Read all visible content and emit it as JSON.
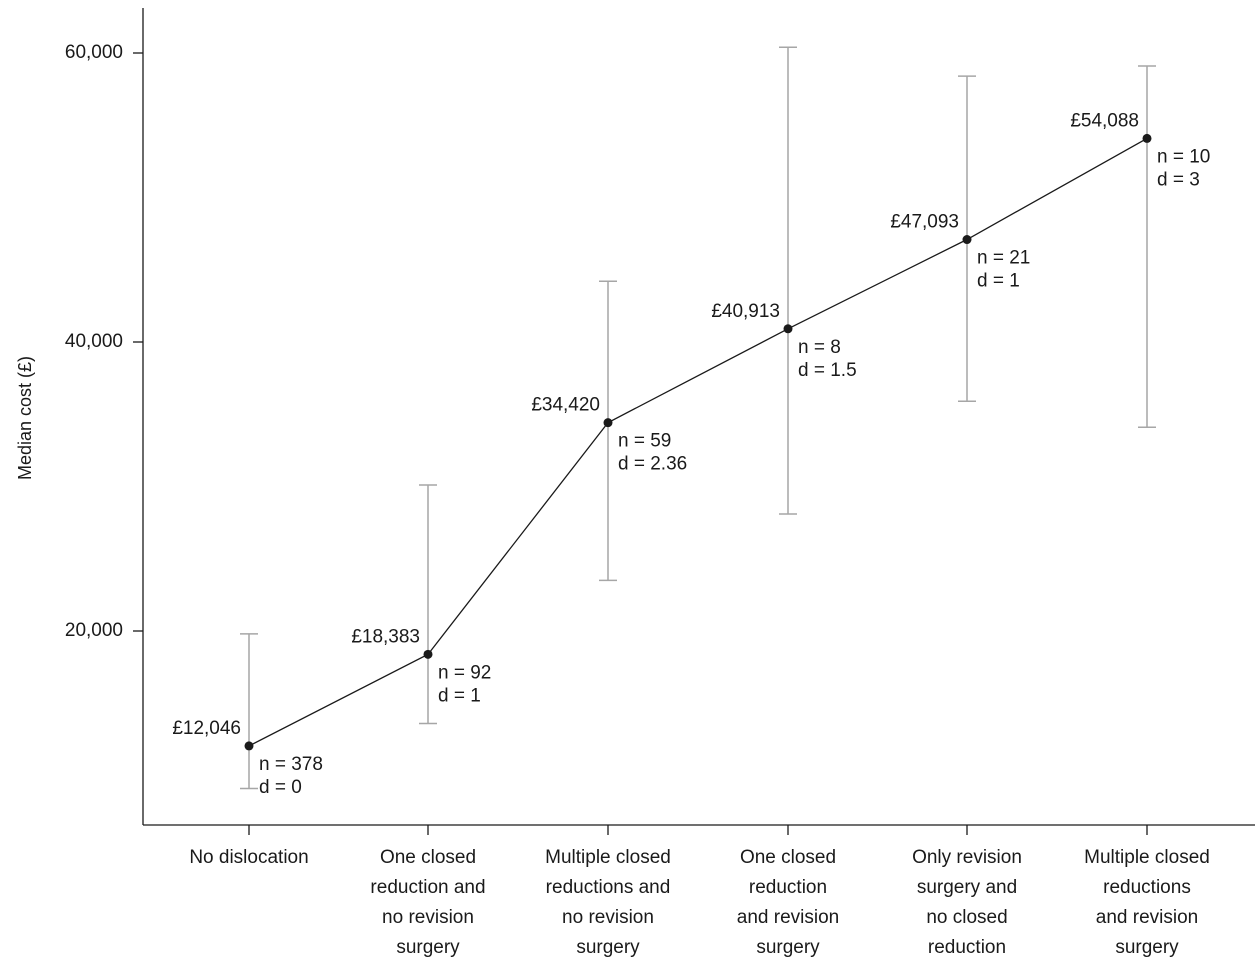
{
  "chart_data": {
    "type": "line",
    "ylabel": "Median cost (£)",
    "xlabel": "",
    "ylim": [
      7000,
      63000
    ],
    "yticks": [
      20000,
      40000,
      60000
    ],
    "ytick_labels": [
      "20,000",
      "40,000",
      "60,000"
    ],
    "categories": [
      [
        "No dislocation"
      ],
      [
        "One closed",
        "reduction and",
        "no revision",
        "surgery"
      ],
      [
        "Multiple closed",
        "reductions and",
        "no revision",
        "surgery"
      ],
      [
        "One closed",
        "reduction",
        "and revision",
        "surgery"
      ],
      [
        "Only revision",
        "surgery and",
        "no closed",
        "reduction"
      ],
      [
        "Multiple closed",
        "reductions",
        "and revision",
        "surgery"
      ]
    ],
    "values": [
      12046,
      18383,
      34420,
      40913,
      47093,
      54088
    ],
    "value_labels": [
      "£12,046",
      "£18,383",
      "£34,420",
      "£40,913",
      "£47,093",
      "£54,088"
    ],
    "error_low": [
      9100,
      13600,
      23500,
      28100,
      35900,
      34100
    ],
    "error_high": [
      19800,
      30100,
      44200,
      60400,
      58400,
      59100
    ],
    "n_labels": [
      "n = 378",
      "n = 92",
      "n = 59",
      "n = 8",
      "n = 21",
      "n = 10"
    ],
    "d_labels": [
      "d = 0",
      "d = 1",
      "d = 2.36",
      "d = 1.5",
      "d = 1",
      "d = 3"
    ],
    "colors": {
      "line": "#1a1a1a",
      "error_bar": "#a6a6a6",
      "point": "#1a1a1a"
    },
    "grid": false,
    "legend": "none"
  }
}
